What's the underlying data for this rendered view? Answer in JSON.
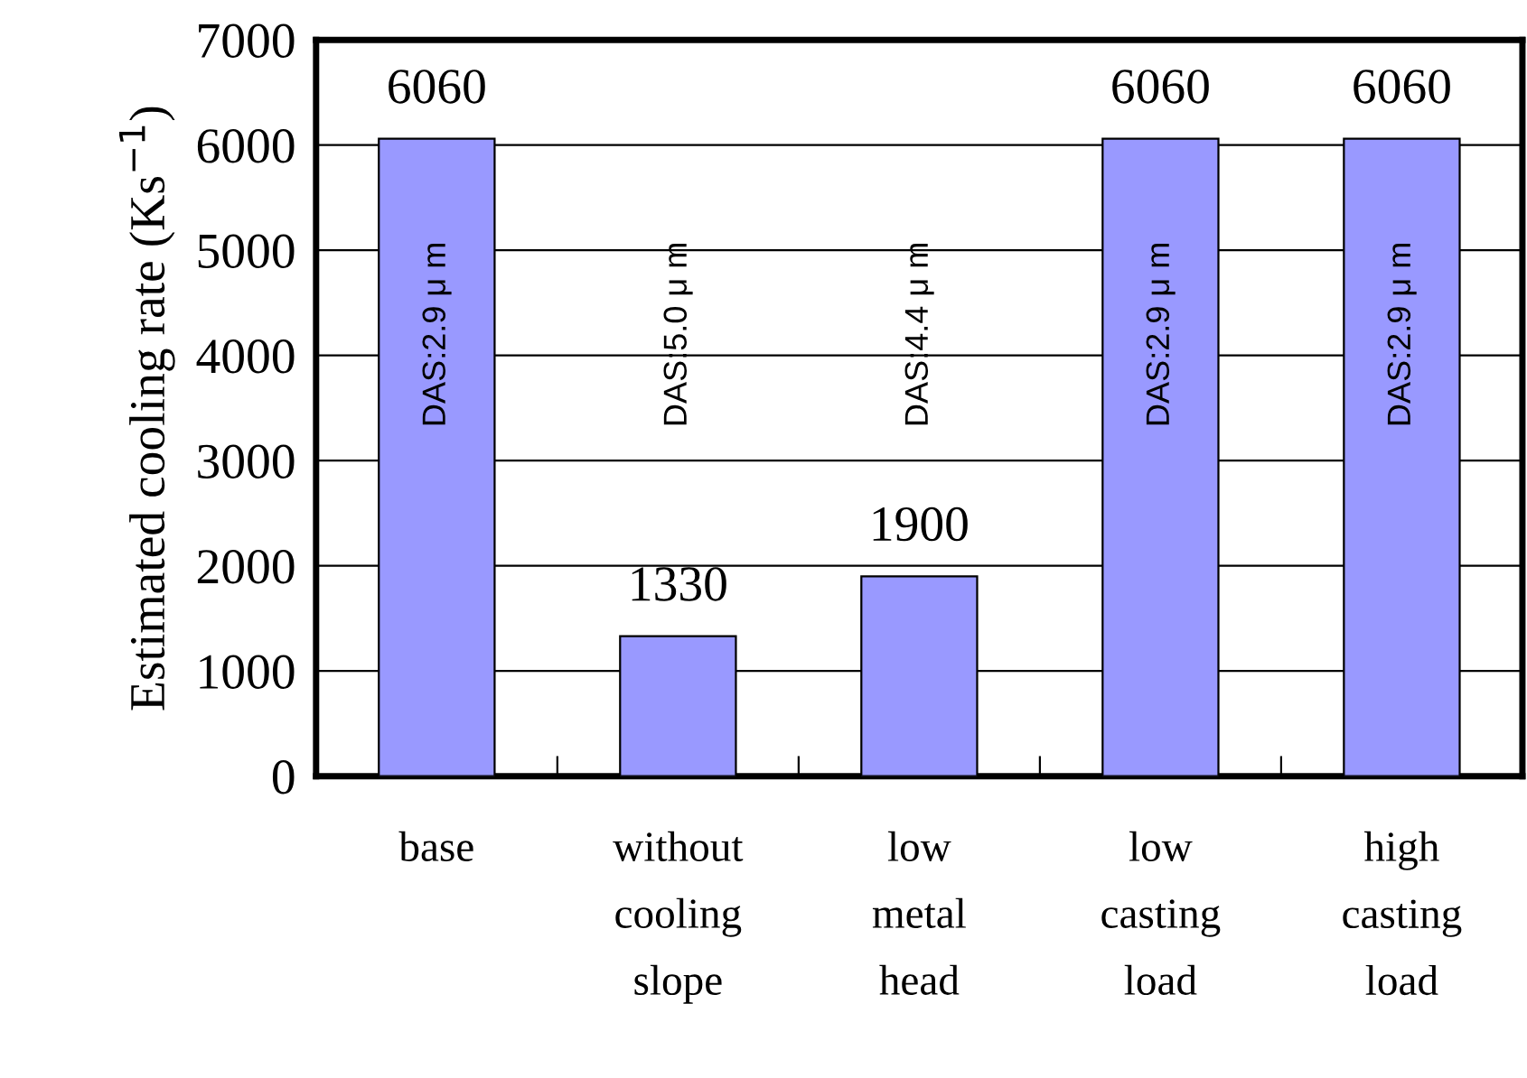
{
  "chart_data": {
    "type": "bar",
    "ylabel": "Estimated cooling rate (Ks$^{−1}$)",
    "categories": [
      "base",
      "without\ncooling\nslope",
      "low\nmetal\nhead",
      "low\ncasting\nload",
      "high\ncasting\nload"
    ],
    "values": [
      6060,
      1330,
      1900,
      6060,
      6060
    ],
    "color": "#9999ff",
    "data_labels": true,
    "ylim": [
      0,
      7000
    ],
    "yticks": [
      0,
      1000,
      2000,
      3000,
      4000,
      5000,
      6000,
      7000
    ],
    "grid": "y",
    "legend": false,
    "annotations": [
      "DAS:2.9 μ m",
      "DAS:5.0 μ m",
      "DAS:4.4 μ m",
      "DAS:2.9 μ m",
      "DAS:2.9 μ m"
    ]
  }
}
